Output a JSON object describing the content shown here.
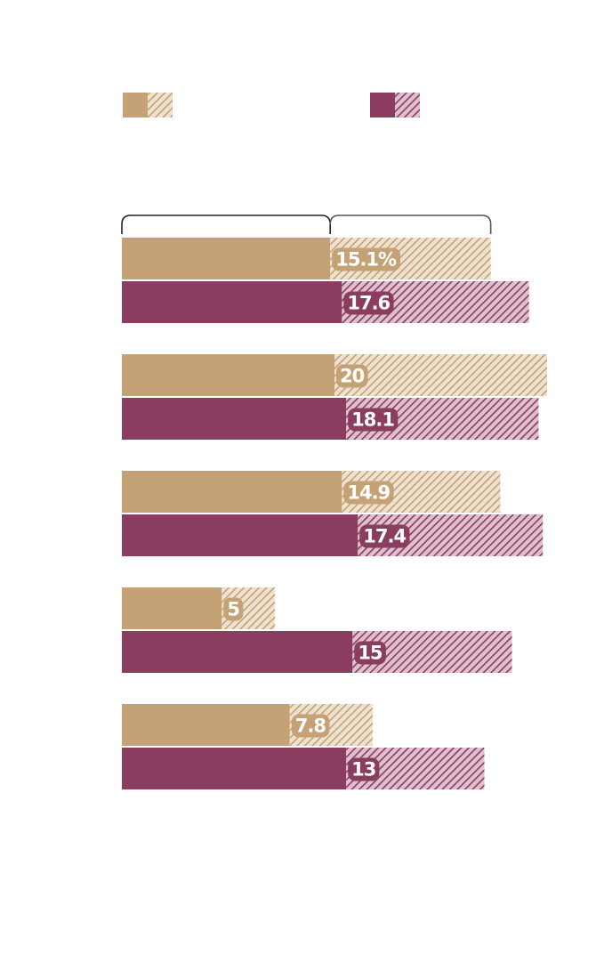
{
  "chart_data": {
    "type": "bar",
    "orientation": "horizontal",
    "stacked": true,
    "title": "",
    "xlabel": "",
    "ylabel": "",
    "categories": [
      "",
      "",
      "",
      "",
      ""
    ],
    "unit": "%",
    "colors": {
      "series_a": "#c4a276",
      "series_a_hatch_bg": "#efe2d1",
      "series_b": "#8a3d5f",
      "series_b_hatch_bg": "#dfc0cf",
      "bracket": "#222222"
    },
    "legend": [
      {
        "series": "series_a",
        "label": ""
      },
      {
        "series": "series_b",
        "label": ""
      }
    ],
    "series": [
      {
        "name": "series_a",
        "base_values_estimated": [
          19.6,
          20.0,
          20.7,
          9.4,
          15.8
        ],
        "hatched_values": [
          15.1,
          20,
          14.9,
          5,
          7.8
        ],
        "hatched_labels": [
          "15.1%",
          "20",
          "14.9",
          "5",
          "7.8"
        ]
      },
      {
        "name": "series_b",
        "base_values_estimated": [
          20.7,
          21.1,
          22.2,
          21.7,
          21.1
        ],
        "hatched_values": [
          17.6,
          18.1,
          17.4,
          15,
          13
        ],
        "hatched_labels": [
          "17.6",
          "18.1",
          "17.4",
          "15",
          "13"
        ]
      }
    ]
  }
}
